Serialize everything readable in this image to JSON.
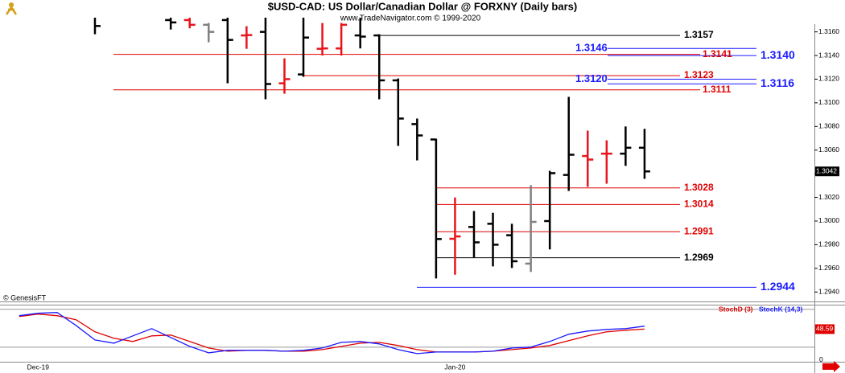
{
  "chart_data": [
    {
      "type": "ohlc",
      "title": "$USD-CAD:  US Dollar/Canadian Dollar @ FORXNY  (Daily bars)",
      "subtitle": "www.TradeNavigator.com © 1999-2020",
      "credit": "© GenesisFT",
      "categories": [
        null,
        "Dec-19",
        null,
        null,
        null,
        null,
        null,
        null,
        null,
        null,
        null,
        null,
        null,
        null,
        null,
        null,
        null,
        null,
        null,
        null,
        null,
        null,
        null,
        "Jan-20",
        null,
        null,
        null,
        null,
        null,
        null,
        null,
        null,
        null,
        null,
        null,
        null,
        null,
        null,
        null,
        null,
        null,
        null
      ],
      "open": [
        null,
        null,
        null,
        null,
        1.3175,
        null,
        null,
        null,
        1.317,
        1.317,
        1.3166,
        1.317,
        1.3157,
        1.316,
        1.31165,
        1.3124,
        1.31457,
        1.3146,
        1.3157,
        1.3157,
        1.3119,
        1.3082,
        1.3069,
        1.2985,
        1.2995,
        1.29977,
        1.2988,
        1.2964,
        1.3,
        1.3039,
        1.3055,
        1.3057,
        1.3057,
        1.3062,
        null,
        null,
        null,
        null,
        null,
        null,
        null,
        null
      ],
      "high": [
        null,
        null,
        null,
        null,
        1.318,
        null,
        null,
        null,
        1.3178,
        1.3178,
        1.31675,
        1.3175,
        1.31648,
        1.3175,
        1.31376,
        1.3175,
        1.31675,
        1.31675,
        1.3175,
        1.3158,
        1.31206,
        1.30867,
        1.30697,
        1.302,
        1.30085,
        1.3007,
        1.29977,
        1.30303,
        1.30425,
        1.3105,
        1.30765,
        1.30683,
        1.308,
        1.3078,
        null,
        null,
        null,
        null,
        null,
        null,
        null,
        null
      ],
      "low": [
        null,
        null,
        null,
        null,
        1.3158,
        null,
        null,
        null,
        1.3162,
        1.3163,
        1.31512,
        1.31165,
        1.31457,
        1.3103,
        1.31077,
        1.3122,
        1.314,
        1.314,
        1.3146,
        1.3103,
        1.30636,
        1.30513,
        1.29515,
        1.29546,
        1.29692,
        1.29617,
        1.29603,
        1.2957,
        1.2976,
        1.30255,
        1.3029,
        1.30316,
        1.30467,
        1.30357,
        null,
        null,
        null,
        null,
        null,
        null,
        null,
        null
      ],
      "close": [
        null,
        null,
        null,
        null,
        1.3165,
        null,
        null,
        null,
        1.3168,
        1.3166,
        1.316,
        1.31532,
        1.31573,
        1.31159,
        1.312,
        1.31552,
        1.3146,
        1.3166,
        1.3156,
        1.3119,
        1.30867,
        1.30724,
        1.29848,
        1.2987,
        1.2982,
        1.298,
        1.2966,
        1.29993,
        1.30405,
        1.30561,
        1.3052,
        1.3057,
        1.3062,
        1.3042,
        null,
        null,
        null,
        null,
        null,
        null,
        null,
        null
      ],
      "colors": [
        null,
        null,
        null,
        null,
        "#000000",
        null,
        null,
        null,
        "#000000",
        "#e8141b",
        "#808080",
        "#000000",
        "#e8141b",
        "#000000",
        "#e8141b",
        "#000000",
        "#e8141b",
        "#e8141b",
        "#000000",
        "#000000",
        "#000000",
        "#000000",
        "#000000",
        "#e8141b",
        "#000000",
        "#000000",
        "#000000",
        "#808080",
        "#000000",
        "#000000",
        "#e8141b",
        "#e8141b",
        "#000000",
        "#000000",
        null,
        null,
        null,
        null,
        null,
        null,
        null,
        null
      ],
      "last_value": 1.3042,
      "ylim": [
        1.2932,
        1.3172
      ],
      "yticks": [
        {
          "value": 1.316,
          "label": "1.3160"
        },
        {
          "value": 1.314,
          "label": "1.3140"
        },
        {
          "value": 1.312,
          "label": "1.3120"
        },
        {
          "value": 1.31,
          "label": "1.3100"
        },
        {
          "value": 1.308,
          "label": "1.3080"
        },
        {
          "value": 1.306,
          "label": "1.3060"
        },
        {
          "value": 1.304,
          "label": "1.3040"
        },
        {
          "value": 1.302,
          "label": "1.3020"
        },
        {
          "value": 1.3,
          "label": "1.3000"
        },
        {
          "value": 1.298,
          "label": "1.2980"
        },
        {
          "value": 1.296,
          "label": "1.2960"
        },
        {
          "value": 1.294,
          "label": "1.2940"
        }
      ],
      "grid": false,
      "levels": [
        {
          "value": 1.3157,
          "label": "1.3157",
          "color": "#000000"
        },
        {
          "value": 1.3146,
          "label": "1.3146",
          "color": "#1a1aff"
        },
        {
          "value": 1.3141,
          "label": "1.3141",
          "color": "#e00000"
        },
        {
          "value": 1.314,
          "label": "1.3140",
          "color": "#1a1aff"
        },
        {
          "value": 1.3123,
          "label": "1.3123",
          "color": "#e00000"
        },
        {
          "value": 1.312,
          "label": "1.3120",
          "color": "#1a1aff"
        },
        {
          "value": 1.3116,
          "label": "1.3116",
          "color": "#1a1aff"
        },
        {
          "value": 1.3111,
          "label": "1.3111",
          "color": "#e00000"
        },
        {
          "value": 1.3028,
          "label": "1.3028",
          "color": "#e00000"
        },
        {
          "value": 1.3014,
          "label": "1.3014",
          "color": "#e00000"
        },
        {
          "value": 1.2991,
          "label": "1.2991",
          "color": "#e00000"
        },
        {
          "value": 1.2969,
          "label": "1.2969",
          "color": "#000000"
        },
        {
          "value": 1.2944,
          "label": "1.2944",
          "color": "#1a1aff"
        }
      ]
    },
    {
      "type": "line",
      "series": [
        {
          "name": "StochD (3)",
          "color": "#e00000",
          "values": [
            68.6,
            72.4,
            69.9,
            63.5,
            44.3,
            34.1,
            29.0,
            37.9,
            39.2,
            29.0,
            18.8,
            13.7,
            15.0,
            15.0,
            13.7,
            13.7,
            16.2,
            21.3,
            26.4,
            27.7,
            22.7,
            16.2,
            12.4,
            12.4,
            12.4,
            13.7,
            16.2,
            18.8,
            22.7,
            30.3,
            37.9,
            44.3,
            46.9,
            48.6,
            null,
            null,
            null,
            null,
            null,
            null,
            null,
            null
          ]
        },
        {
          "name": "StochK (14,3)",
          "color": "#1a1aff",
          "values": [
            69.9,
            73.7,
            75.0,
            54.5,
            31.5,
            26.4,
            37.9,
            49.4,
            35.4,
            21.3,
            11.1,
            15.0,
            15.0,
            15.0,
            13.7,
            15.0,
            18.8,
            27.7,
            29.0,
            25.2,
            16.2,
            9.8,
            12.4,
            12.4,
            12.4,
            13.7,
            18.8,
            20.1,
            29.0,
            40.5,
            45.6,
            48.1,
            49.4,
            53.3,
            null,
            null,
            null,
            null,
            null,
            null,
            null,
            null
          ]
        }
      ],
      "last_value": 48.59,
      "levels": [
        20,
        80
      ],
      "ylim": [
        -3,
        86
      ],
      "yticks": [
        0
      ]
    }
  ]
}
